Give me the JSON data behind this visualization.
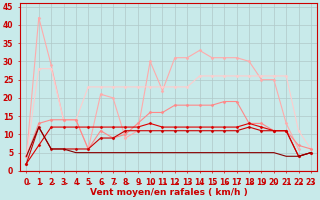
{
  "bg_color": "#c8eaea",
  "grid_color": "#b0c8c8",
  "xlabel": "Vent moyen/en rafales ( km/h )",
  "xlabel_color": "#cc0000",
  "xlabel_fontsize": 6.5,
  "tick_color": "#cc0000",
  "tick_fontsize": 5.5,
  "xlim": [
    -0.5,
    23.5
  ],
  "ylim": [
    0,
    46
  ],
  "yticks": [
    0,
    5,
    10,
    15,
    20,
    25,
    30,
    35,
    40,
    45
  ],
  "xticks": [
    0,
    1,
    2,
    3,
    4,
    5,
    6,
    7,
    8,
    9,
    10,
    11,
    12,
    13,
    14,
    15,
    16,
    17,
    18,
    19,
    20,
    21,
    22,
    23
  ],
  "series": [
    {
      "x": [
        0,
        1,
        2,
        3,
        4,
        5,
        6,
        7,
        8,
        9,
        10,
        11,
        12,
        13,
        14,
        15,
        16,
        17,
        18,
        19,
        20,
        21,
        22
      ],
      "y": [
        4,
        42,
        29,
        14,
        14,
        6,
        21,
        20,
        9,
        11,
        30,
        22,
        31,
        31,
        33,
        31,
        31,
        31,
        30,
        25,
        25,
        13,
        6
      ],
      "color": "#ffaaaa",
      "marker": "D",
      "markersize": 1.5,
      "linewidth": 0.8
    },
    {
      "x": [
        0,
        1,
        2,
        3,
        4,
        5,
        6,
        7,
        8,
        9,
        10,
        11,
        12,
        13,
        14,
        15,
        16,
        17,
        18,
        19,
        20,
        21,
        22,
        23
      ],
      "y": [
        4,
        28,
        28,
        14,
        14,
        23,
        23,
        23,
        23,
        23,
        23,
        23,
        23,
        23,
        26,
        26,
        26,
        26,
        26,
        26,
        26,
        26,
        11,
        6
      ],
      "color": "#ffcccc",
      "marker": "D",
      "markersize": 1.5,
      "linewidth": 0.8
    },
    {
      "x": [
        0,
        1,
        2,
        3,
        4,
        5,
        6,
        7,
        8,
        9,
        10,
        11,
        12,
        13,
        14,
        15,
        16,
        17,
        18,
        19,
        20,
        21,
        22,
        23
      ],
      "y": [
        4,
        13,
        14,
        14,
        14,
        6,
        11,
        9,
        10,
        13,
        16,
        16,
        18,
        18,
        18,
        18,
        19,
        19,
        13,
        13,
        11,
        11,
        7,
        6
      ],
      "color": "#ff8888",
      "marker": "D",
      "markersize": 1.5,
      "linewidth": 0.8
    },
    {
      "x": [
        0,
        1,
        2,
        3,
        4,
        5,
        6,
        7,
        8,
        9,
        10,
        11,
        12,
        13,
        14,
        15,
        16,
        17,
        18,
        19,
        20,
        21,
        22,
        23
      ],
      "y": [
        2,
        7,
        12,
        12,
        12,
        12,
        12,
        12,
        12,
        12,
        13,
        12,
        12,
        12,
        12,
        12,
        12,
        12,
        13,
        12,
        11,
        11,
        4,
        5
      ],
      "color": "#dd0000",
      "marker": "D",
      "markersize": 1.5,
      "linewidth": 0.8
    },
    {
      "x": [
        0,
        1,
        2,
        3,
        4,
        5,
        6,
        7,
        8,
        9,
        10,
        11,
        12,
        13,
        14,
        15,
        16,
        17,
        18,
        19,
        20,
        21,
        22,
        23
      ],
      "y": [
        2,
        12,
        6,
        6,
        6,
        6,
        9,
        9,
        11,
        11,
        11,
        11,
        11,
        11,
        11,
        11,
        11,
        11,
        12,
        11,
        11,
        11,
        4,
        5
      ],
      "color": "#cc0000",
      "marker": "D",
      "markersize": 1.5,
      "linewidth": 0.8
    },
    {
      "x": [
        0,
        1,
        2,
        3,
        4,
        5,
        6,
        7,
        8,
        9,
        10,
        11,
        12,
        13,
        14,
        15,
        16,
        17,
        18,
        19,
        20,
        21,
        22,
        23
      ],
      "y": [
        4,
        12,
        6,
        6,
        5,
        5,
        5,
        5,
        5,
        5,
        5,
        5,
        5,
        5,
        5,
        5,
        5,
        5,
        5,
        5,
        5,
        4,
        4,
        5
      ],
      "color": "#880000",
      "marker": null,
      "markersize": 0,
      "linewidth": 0.8
    }
  ]
}
